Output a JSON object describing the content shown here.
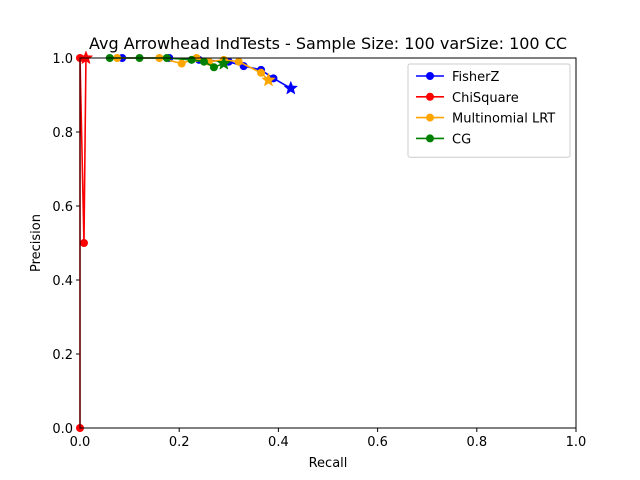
{
  "chart_data": {
    "type": "line",
    "title": "Avg Arrowhead IndTests - Sample Size: 100 varSize: 100 CC",
    "xlabel": "Recall",
    "ylabel": "Precision",
    "xlim": [
      0,
      1
    ],
    "ylim": [
      0,
      1
    ],
    "x_ticks": [
      "0.0",
      "0.2",
      "0.4",
      "0.6",
      "0.8",
      "1.0"
    ],
    "y_ticks": [
      "0.0",
      "0.2",
      "0.4",
      "0.6",
      "0.8",
      "1.0"
    ],
    "grid": false,
    "legend_position": "top-right",
    "series": [
      {
        "name": "FisherZ",
        "color": "#0000ff",
        "x": [
          0.085,
          0.18,
          0.24,
          0.3,
          0.33,
          0.365,
          0.39,
          0.425
        ],
        "y": [
          1.0,
          1.0,
          0.995,
          0.99,
          0.978,
          0.968,
          0.945,
          0.918
        ],
        "end_marker": "star"
      },
      {
        "name": "ChiSquare",
        "color": "#ff0000",
        "x": [
          0.0,
          0.0,
          0.008,
          0.012
        ],
        "y": [
          0.0,
          1.0,
          0.5,
          1.0
        ],
        "end_marker": "star"
      },
      {
        "name": "Multinomial LRT",
        "color": "#ffa500",
        "x": [
          0.075,
          0.16,
          0.205,
          0.235,
          0.26,
          0.29,
          0.32,
          0.365,
          0.38
        ],
        "y": [
          1.0,
          1.0,
          0.985,
          1.0,
          0.99,
          0.995,
          0.99,
          0.96,
          0.94
        ],
        "end_marker": "star"
      },
      {
        "name": "CG",
        "color": "#008000",
        "x": [
          0.06,
          0.12,
          0.175,
          0.225,
          0.25,
          0.27,
          0.29
        ],
        "y": [
          1.0,
          1.0,
          1.0,
          0.995,
          0.99,
          0.975,
          0.985
        ],
        "end_marker": "star"
      }
    ]
  }
}
